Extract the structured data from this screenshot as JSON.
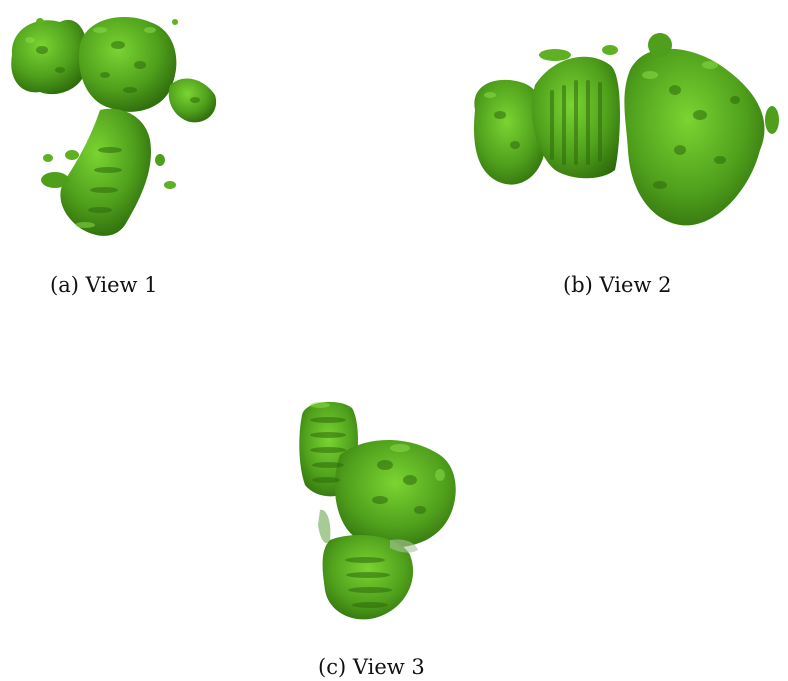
{
  "figure": {
    "colors": {
      "density_light": "#6fcf2a",
      "density_mid": "#4f9f1c",
      "density_dark": "#2d6a0c",
      "background": "#ffffff"
    },
    "panels": [
      {
        "caption": "(a) View 1"
      },
      {
        "caption": "(b) View 2"
      },
      {
        "caption": "(c) View 3"
      }
    ]
  }
}
